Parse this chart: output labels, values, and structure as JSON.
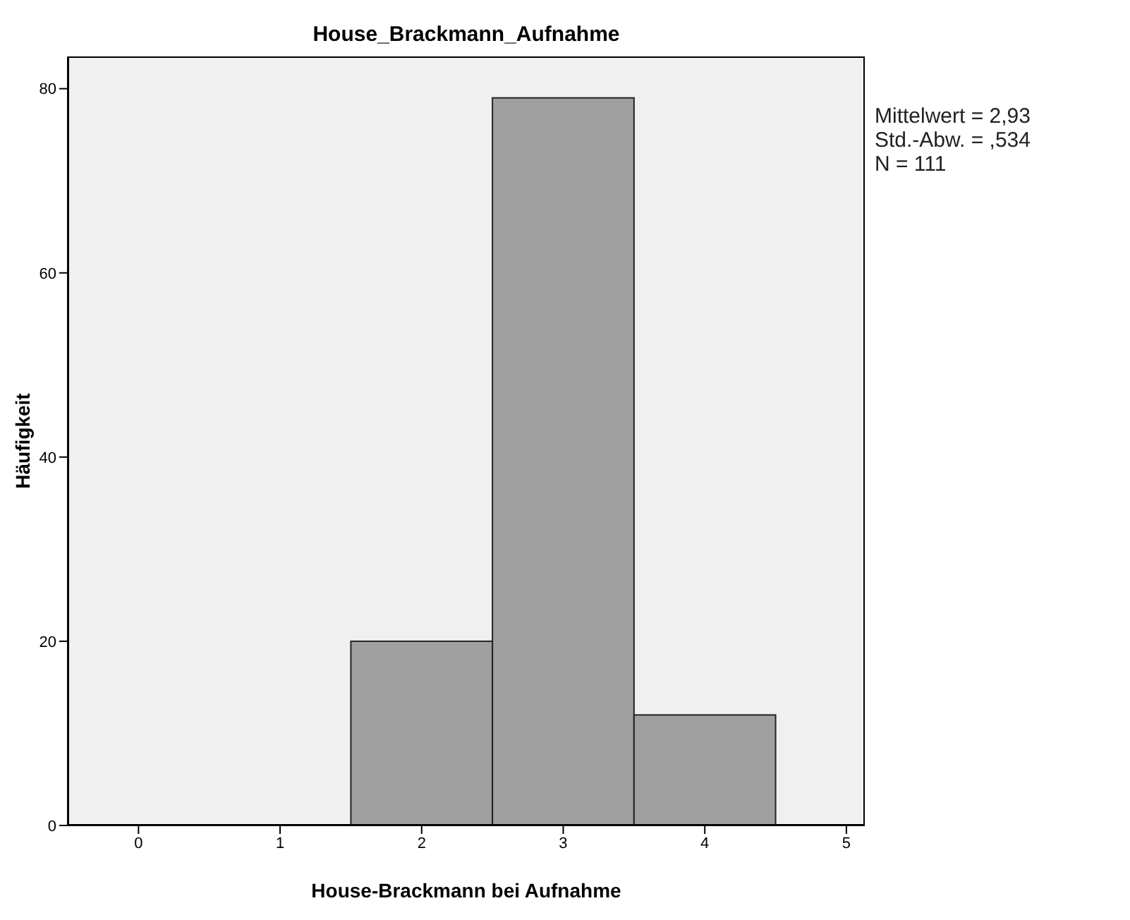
{
  "chart_data": {
    "type": "histogram",
    "title": "House_Brackmann_Aufnahme",
    "xlabel": "House-Brackmann bei Aufnahme",
    "ylabel": "Häufigkeit",
    "bins": [
      1.5,
      2.5,
      3.5,
      4.5
    ],
    "values": [
      20,
      79,
      12
    ],
    "color": "#a0a0a0",
    "xlim": [
      -0.5,
      5.13
    ],
    "xticks": [
      0,
      1,
      2,
      3,
      4,
      5
    ],
    "ylim": [
      0,
      83.5
    ],
    "yticks": [
      0,
      20,
      40,
      60,
      80
    ],
    "grid": false,
    "annotations": [
      "Mittelwert = 2,93",
      "Std.-Abw. = ,534",
      "N = 111"
    ]
  }
}
